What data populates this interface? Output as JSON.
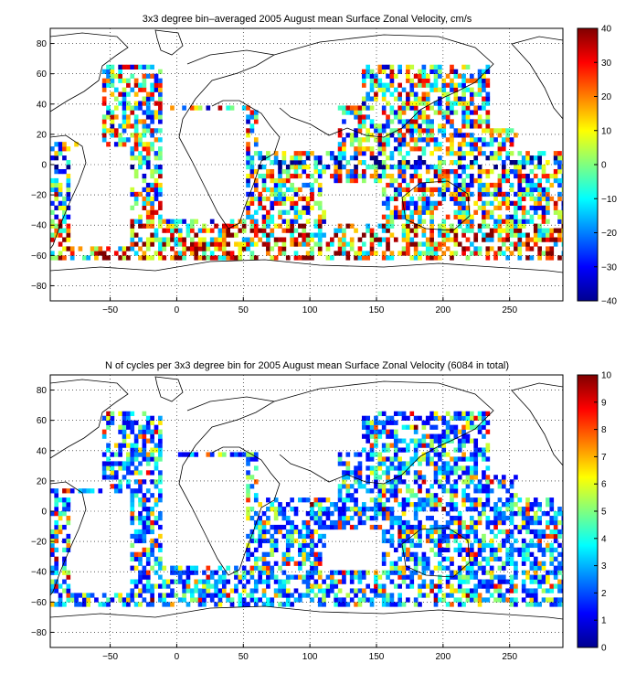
{
  "figure": {
    "panels": [
      {
        "title": "3x3 degree bin–averaged 2005 August mean Surface Zonal Velocity, cm/s",
        "colorbar_ticks": [
          "40",
          "30",
          "20",
          "10",
          "0",
          "−10",
          "−20",
          "−30",
          "−40"
        ]
      },
      {
        "title": "N of cycles per 3x3 degree bin for 2005 August mean Surface Zonal Velocity (6084 in total)",
        "colorbar_ticks": [
          "10",
          "9",
          "8",
          "7",
          "6",
          "5",
          "4",
          "3",
          "2",
          "1",
          "0"
        ]
      }
    ],
    "x_tick_labels": [
      "−50",
      "0",
      "50",
      "100",
      "150",
      "200",
      "250"
    ],
    "y_tick_labels": [
      "80",
      "60",
      "40",
      "20",
      "0",
      "−20",
      "−40",
      "−60",
      "−80"
    ]
  },
  "chart_data": [
    {
      "type": "heatmap",
      "title": "3x3 degree bin–averaged 2005 August mean Surface Zonal Velocity, cm/s",
      "xlim": [
        -95,
        290
      ],
      "ylim": [
        -90,
        90
      ],
      "x_ticks": [
        -50,
        0,
        50,
        100,
        150,
        200,
        250
      ],
      "y_ticks": [
        -80,
        -60,
        -40,
        -20,
        0,
        20,
        40,
        60,
        80
      ],
      "bin_size_deg": 3,
      "colormap": "jet",
      "color_range": [
        -40,
        40
      ],
      "colorbar_ticks": [
        40,
        30,
        20,
        10,
        0,
        -10,
        -20,
        -30,
        -40
      ],
      "grid": true,
      "coastline_overlay": true
    },
    {
      "type": "heatmap",
      "title": "N of cycles per 3x3 degree bin for 2005 August mean Surface Zonal Velocity (6084 in total)",
      "xlim": [
        -95,
        290
      ],
      "ylim": [
        -90,
        90
      ],
      "x_ticks": [
        -50,
        0,
        50,
        100,
        150,
        200,
        250
      ],
      "y_ticks": [
        -80,
        -60,
        -40,
        -20,
        0,
        20,
        40,
        60,
        80
      ],
      "bin_size_deg": 3,
      "colormap": "jet",
      "color_range": [
        0,
        10
      ],
      "colorbar_ticks": [
        10,
        9,
        8,
        7,
        6,
        5,
        4,
        3,
        2,
        1,
        0
      ],
      "total_cycles": 6084,
      "grid": true,
      "coastline_overlay": true
    }
  ]
}
